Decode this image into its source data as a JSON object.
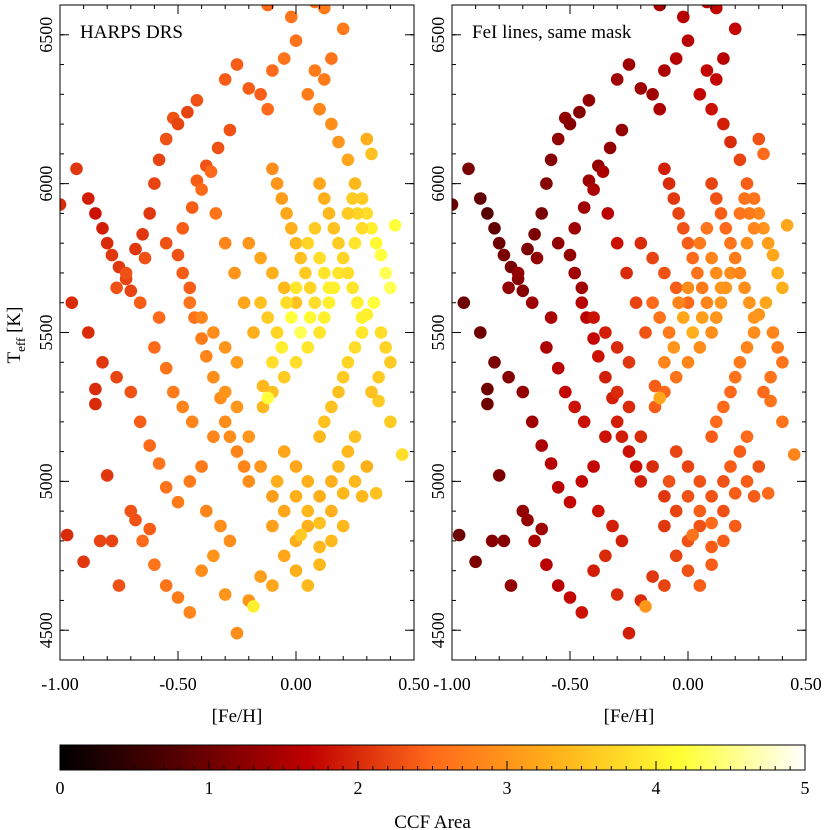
{
  "chart_data": {
    "type": "scatter",
    "colormap": "hot",
    "colormap_stops": [
      "#000000",
      "#5a0000",
      "#c00000",
      "#ff6a1a",
      "#ffb21a",
      "#ffff33",
      "#ffffff"
    ],
    "panels": [
      {
        "title": "HARPS DRS",
        "xlabel": "[Fe/H]",
        "ylabel_main": "T",
        "ylabel_sub": "eff",
        "ylabel_unit": " [K]",
        "xlim": [
          -1.0,
          0.5
        ],
        "ylim": [
          4400,
          6600
        ],
        "xticks": [
          "-1.00",
          "-0.50",
          "0.00",
          "0.50"
        ],
        "yticks": [
          "4500",
          "5000",
          "5500",
          "6000",
          "6500"
        ],
        "color_offset": 0.0
      },
      {
        "title": "FeI lines, same mask",
        "xlabel": "[Fe/H]",
        "xlim": [
          -1.0,
          0.5
        ],
        "ylim": [
          4400,
          6600
        ],
        "xticks": [
          "-1.00",
          "-0.50",
          "0.00",
          "0.50"
        ],
        "yticks": [
          "4500",
          "5000",
          "5500",
          "6000",
          "6500"
        ],
        "color_offset": -1.0
      }
    ],
    "colorbar": {
      "label": "CCF Area",
      "range": [
        0,
        5
      ],
      "ticks": [
        "0",
        "1",
        "2",
        "3",
        "4",
        "5"
      ]
    },
    "points": [
      [
        -0.93,
        6050,
        2.1
      ],
      [
        -0.88,
        5950,
        1.9
      ],
      [
        -0.85,
        5900,
        1.8
      ],
      [
        -0.82,
        5850,
        1.9
      ],
      [
        -1.0,
        5930,
        2.0
      ],
      [
        -0.8,
        5800,
        2.0
      ],
      [
        -0.78,
        5760,
        2.1
      ],
      [
        -0.75,
        5720,
        2.1
      ],
      [
        -0.72,
        5680,
        2.2
      ],
      [
        -0.7,
        5640,
        2.2
      ],
      [
        -0.68,
        5780,
        2.1
      ],
      [
        -0.65,
        5830,
        2.1
      ],
      [
        -0.62,
        5900,
        2.1
      ],
      [
        -0.6,
        6000,
        2.2
      ],
      [
        -0.58,
        6080,
        2.2
      ],
      [
        -0.55,
        6150,
        2.3
      ],
      [
        -0.52,
        6220,
        2.3
      ],
      [
        -0.5,
        5760,
        2.3
      ],
      [
        -0.48,
        5700,
        2.4
      ],
      [
        -0.45,
        5650,
        2.4
      ],
      [
        -0.43,
        5550,
        2.6
      ],
      [
        -0.4,
        5480,
        2.7
      ],
      [
        -0.38,
        5420,
        2.8
      ],
      [
        -0.35,
        5350,
        2.9
      ],
      [
        -0.32,
        5280,
        2.9
      ],
      [
        -0.3,
        5200,
        2.9
      ],
      [
        -0.28,
        5150,
        2.9
      ],
      [
        -0.25,
        5100,
        2.8
      ],
      [
        -0.22,
        5050,
        2.8
      ],
      [
        -0.2,
        5000,
        2.9
      ],
      [
        -0.85,
        5310,
        2.0
      ],
      [
        -0.85,
        5260,
        2.0
      ],
      [
        -0.8,
        5020,
        2.1
      ],
      [
        -0.78,
        4800,
        2.2
      ],
      [
        -0.7,
        4900,
        2.3
      ],
      [
        -0.68,
        4870,
        2.3
      ],
      [
        -0.65,
        4800,
        2.5
      ],
      [
        -0.6,
        4720,
        2.6
      ],
      [
        -0.55,
        4650,
        2.6
      ],
      [
        -0.5,
        4610,
        2.7
      ],
      [
        -0.45,
        4560,
        2.8
      ],
      [
        -0.4,
        4700,
        2.9
      ],
      [
        -0.35,
        4750,
        3.0
      ],
      [
        -0.3,
        4620,
        3.0
      ],
      [
        -0.25,
        4490,
        2.9
      ],
      [
        -0.2,
        4600,
        3.0
      ],
      [
        -0.15,
        4680,
        3.1
      ],
      [
        -0.1,
        4650,
        3.2
      ],
      [
        -0.05,
        4750,
        3.2
      ],
      [
        0.0,
        4800,
        3.3
      ],
      [
        0.05,
        4850,
        3.3
      ],
      [
        0.1,
        4780,
        3.4
      ],
      [
        0.15,
        4900,
        3.3
      ],
      [
        0.2,
        4960,
        3.4
      ],
      [
        0.25,
        5000,
        3.4
      ],
      [
        0.3,
        5050,
        3.3
      ],
      [
        0.34,
        4960,
        3.5
      ],
      [
        0.45,
        5090,
        3.8
      ],
      [
        0.4,
        5200,
        3.6
      ],
      [
        0.35,
        5270,
        3.6
      ],
      [
        -0.97,
        4820,
        2.0
      ],
      [
        -0.9,
        4730,
        2.1
      ],
      [
        -0.83,
        4800,
        2.2
      ],
      [
        -0.75,
        4650,
        2.3
      ],
      [
        -0.62,
        4840,
        2.4
      ],
      [
        -0.95,
        5600,
        2.0
      ],
      [
        -0.88,
        5500,
        2.0
      ],
      [
        -0.82,
        5400,
        2.1
      ],
      [
        -0.76,
        5350,
        2.2
      ],
      [
        -0.7,
        5300,
        2.3
      ],
      [
        -0.66,
        5200,
        2.4
      ],
      [
        -0.62,
        5120,
        2.5
      ],
      [
        -0.58,
        5060,
        2.6
      ],
      [
        -0.55,
        4980,
        2.6
      ],
      [
        -0.5,
        4930,
        2.7
      ],
      [
        -0.15,
        6300,
        2.4
      ],
      [
        -0.12,
        6250,
        2.5
      ],
      [
        -0.1,
        6380,
        2.5
      ],
      [
        -0.05,
        6420,
        2.6
      ],
      [
        0.0,
        6480,
        2.6
      ],
      [
        -0.2,
        6320,
        2.4
      ],
      [
        -0.28,
        6180,
        2.3
      ],
      [
        -0.33,
        6120,
        2.3
      ],
      [
        -0.38,
        6060,
        2.3
      ],
      [
        -0.42,
        6010,
        2.4
      ],
      [
        0.05,
        6300,
        2.7
      ],
      [
        0.1,
        6250,
        2.8
      ],
      [
        0.15,
        6200,
        2.9
      ],
      [
        0.18,
        6140,
        3.0
      ],
      [
        0.2,
        6520,
        2.7
      ],
      [
        0.22,
        6080,
        3.2
      ],
      [
        0.25,
        6000,
        3.4
      ],
      [
        0.28,
        5950,
        3.6
      ],
      [
        0.3,
        5900,
        3.8
      ],
      [
        0.32,
        5850,
        4.0
      ],
      [
        0.34,
        5800,
        4.1
      ],
      [
        0.36,
        5760,
        4.2
      ],
      [
        0.38,
        5700,
        4.3
      ],
      [
        0.4,
        5650,
        4.3
      ],
      [
        0.42,
        5860,
        4.2
      ],
      [
        0.33,
        5600,
        4.2
      ],
      [
        0.3,
        5560,
        4.0
      ],
      [
        0.28,
        5500,
        3.9
      ],
      [
        0.25,
        5450,
        3.8
      ],
      [
        0.22,
        5400,
        3.7
      ],
      [
        0.2,
        5350,
        3.6
      ],
      [
        0.18,
        5300,
        3.5
      ],
      [
        0.15,
        5250,
        3.5
      ],
      [
        0.12,
        5200,
        3.5
      ],
      [
        0.1,
        5150,
        3.4
      ],
      [
        0.08,
        5600,
        3.8
      ],
      [
        0.06,
        5650,
        3.7
      ],
      [
        0.04,
        5700,
        3.6
      ],
      [
        0.02,
        5750,
        3.5
      ],
      [
        0.0,
        5800,
        3.4
      ],
      [
        -0.02,
        5850,
        3.3
      ],
      [
        -0.04,
        5900,
        3.2
      ],
      [
        -0.06,
        5950,
        3.1
      ],
      [
        -0.08,
        6000,
        3.0
      ],
      [
        -0.1,
        6050,
        2.9
      ],
      [
        0.1,
        5500,
        3.9
      ],
      [
        0.12,
        5550,
        4.0
      ],
      [
        0.14,
        5600,
        4.0
      ],
      [
        0.16,
        5650,
        4.0
      ],
      [
        0.18,
        5700,
        3.9
      ],
      [
        0.05,
        5450,
        3.9
      ],
      [
        0.0,
        5400,
        3.8
      ],
      [
        -0.05,
        5350,
        3.6
      ],
      [
        -0.1,
        5300,
        3.5
      ],
      [
        -0.14,
        5250,
        3.4
      ],
      [
        -0.18,
        5500,
        3.3
      ],
      [
        -0.22,
        5600,
        3.2
      ],
      [
        -0.26,
        5700,
        3.0
      ],
      [
        -0.3,
        5800,
        2.8
      ],
      [
        -0.34,
        5900,
        2.6
      ],
      [
        -0.2,
        5800,
        3.0
      ],
      [
        -0.15,
        5750,
        3.2
      ],
      [
        -0.1,
        5700,
        3.3
      ],
      [
        -0.05,
        5650,
        3.4
      ],
      [
        0.0,
        5600,
        3.5
      ],
      [
        -0.25,
        5400,
        3.1
      ],
      [
        -0.3,
        5450,
        3.0
      ],
      [
        -0.35,
        5500,
        2.9
      ],
      [
        -0.4,
        5550,
        2.8
      ],
      [
        -0.45,
        5600,
        2.6
      ],
      [
        0.1,
        6000,
        3.2
      ],
      [
        0.12,
        5950,
        3.3
      ],
      [
        0.14,
        5900,
        3.4
      ],
      [
        0.16,
        5850,
        3.5
      ],
      [
        0.18,
        5800,
        3.6
      ],
      [
        0.2,
        5750,
        3.7
      ],
      [
        0.22,
        5700,
        3.8
      ],
      [
        0.24,
        5650,
        3.9
      ],
      [
        0.26,
        5600,
        4.0
      ],
      [
        0.28,
        5550,
        4.0
      ],
      [
        -0.05,
        5100,
        3.2
      ],
      [
        0.0,
        5050,
        3.2
      ],
      [
        0.05,
        5000,
        3.3
      ],
      [
        0.1,
        4950,
        3.3
      ],
      [
        -0.1,
        4950,
        3.1
      ],
      [
        -0.15,
        5050,
        3.0
      ],
      [
        -0.2,
        5150,
        3.0
      ],
      [
        -0.25,
        5250,
        3.0
      ],
      [
        -0.3,
        5300,
        3.0
      ],
      [
        -0.35,
        5150,
        2.8
      ],
      [
        -0.4,
        5050,
        2.7
      ],
      [
        -0.45,
        5000,
        2.7
      ],
      [
        -0.38,
        4900,
        2.8
      ],
      [
        -0.32,
        4850,
        2.9
      ],
      [
        -0.28,
        4800,
        2.9
      ],
      [
        0.0,
        4700,
        3.3
      ],
      [
        0.05,
        4650,
        3.4
      ],
      [
        0.1,
        4720,
        3.4
      ],
      [
        0.15,
        4800,
        3.4
      ],
      [
        0.2,
        4850,
        3.4
      ],
      [
        -0.1,
        4850,
        3.1
      ],
      [
        -0.05,
        4900,
        3.2
      ],
      [
        0.0,
        4950,
        3.3
      ],
      [
        0.05,
        4900,
        3.4
      ],
      [
        0.1,
        4860,
        3.5
      ],
      [
        -0.12,
        5280,
        4.2
      ],
      [
        -0.14,
        5320,
        3.4
      ],
      [
        -0.08,
        5000,
        3.3
      ],
      [
        0.02,
        4820,
        3.6
      ],
      [
        -0.18,
        4580,
        4.0
      ],
      [
        -0.6,
        5450,
        2.5
      ],
      [
        -0.55,
        5380,
        2.6
      ],
      [
        -0.52,
        5300,
        2.7
      ],
      [
        -0.48,
        5250,
        2.8
      ],
      [
        -0.44,
        5200,
        2.8
      ],
      [
        -0.66,
        5600,
        2.4
      ],
      [
        -0.72,
        5700,
        2.3
      ],
      [
        -0.76,
        5650,
        2.3
      ],
      [
        -0.64,
        5750,
        2.3
      ],
      [
        -0.58,
        5550,
        2.5
      ],
      [
        -0.55,
        5800,
        2.3
      ],
      [
        -0.48,
        5850,
        2.4
      ],
      [
        -0.44,
        5920,
        2.4
      ],
      [
        -0.4,
        5980,
        2.5
      ],
      [
        -0.36,
        6040,
        2.5
      ],
      [
        -0.5,
        6200,
        2.2
      ],
      [
        -0.46,
        6240,
        2.2
      ],
      [
        -0.42,
        6280,
        2.3
      ],
      [
        -0.3,
        6350,
        2.4
      ],
      [
        -0.25,
        6400,
        2.4
      ],
      [
        0.15,
        6420,
        2.6
      ],
      [
        0.12,
        6350,
        2.7
      ],
      [
        0.08,
        6380,
        2.7
      ],
      [
        0.3,
        6150,
        3.3
      ],
      [
        0.32,
        6100,
        3.5
      ],
      [
        -0.06,
        6620,
        2.6
      ],
      [
        -0.12,
        6600,
        2.5
      ],
      [
        0.12,
        6590,
        2.7
      ],
      [
        0.08,
        6610,
        2.6
      ],
      [
        -0.02,
        6560,
        2.6
      ],
      [
        0.4,
        5400,
        3.6
      ],
      [
        0.38,
        5450,
        3.7
      ],
      [
        0.36,
        5500,
        3.8
      ],
      [
        0.35,
        5350,
        3.6
      ],
      [
        0.32,
        5300,
        3.5
      ],
      [
        0.25,
        5150,
        3.5
      ],
      [
        0.22,
        5100,
        3.4
      ],
      [
        0.18,
        5050,
        3.4
      ],
      [
        0.15,
        5000,
        3.3
      ],
      [
        0.28,
        4950,
        3.4
      ],
      [
        -0.02,
        5550,
        4.2
      ],
      [
        0.02,
        5500,
        4.3
      ],
      [
        0.06,
        5550,
        4.1
      ],
      [
        -0.06,
        5450,
        4.0
      ],
      [
        -0.1,
        5400,
        3.8
      ],
      [
        0.05,
        5800,
        3.7
      ],
      [
        0.08,
        5850,
        3.6
      ],
      [
        0.1,
        5750,
        3.8
      ],
      [
        0.12,
        5700,
        3.9
      ],
      [
        0.14,
        5650,
        4.0
      ],
      [
        -0.15,
        5600,
        3.5
      ],
      [
        -0.12,
        5550,
        3.6
      ],
      [
        -0.08,
        5500,
        3.7
      ],
      [
        -0.04,
        5600,
        3.8
      ],
      [
        0.0,
        5650,
        3.9
      ],
      [
        0.25,
        5800,
        3.9
      ],
      [
        0.28,
        5850,
        3.8
      ],
      [
        0.26,
        5900,
        3.7
      ],
      [
        0.24,
        5950,
        3.6
      ],
      [
        0.22,
        5900,
        3.6
      ]
    ]
  }
}
